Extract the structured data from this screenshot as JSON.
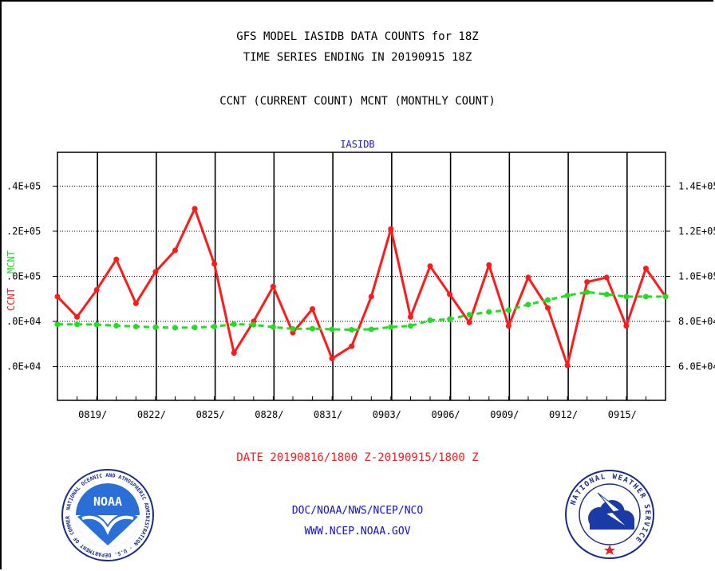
{
  "header": {
    "line1": "GFS MODEL IASIDB DATA COUNTS for 18Z",
    "line2": "TIME SERIES ENDING IN 20190915 18Z",
    "line3": "CCNT (CURRENT COUNT) MCNT (MONTHLY COUNT)"
  },
  "chart_data": {
    "type": "line",
    "title": "IASIDB",
    "xlabel": "DATE 20190816/1800 Z-20190915/1800 Z",
    "ylabel_left": "CCNT",
    "ylabel_right": "MCNT",
    "x_tick_labels": [
      "0819/",
      "0822/",
      "0825/",
      "0828/",
      "0831/",
      "0903/",
      "0906/",
      "0909/",
      "0912/",
      "0915/"
    ],
    "left_tick_labels": [
      ".4E+05",
      ".2E+05",
      ".0E+05",
      ".0E+04",
      ".0E+04"
    ],
    "right_tick_labels": [
      "1.4E+05",
      "1.2E+05",
      "1.0E+05",
      "8.0E+04",
      "6.0E+04"
    ],
    "right_ylim": [
      45000,
      155000
    ],
    "grid": true,
    "series": [
      {
        "name": "CCNT",
        "color": "#ff1a1a",
        "x": [
          "0816",
          "0817",
          "0818",
          "0819",
          "0820",
          "0821",
          "0822",
          "0823",
          "0824",
          "0825",
          "0826",
          "0827",
          "0828",
          "0829",
          "0830",
          "0831",
          "0901",
          "0902",
          "0903",
          "0904",
          "0905",
          "0906",
          "0907",
          "0908",
          "0909",
          "0910",
          "0911",
          "0912",
          "0913",
          "0914",
          "0915",
          "0916"
        ],
        "values": [
          91000,
          82000,
          94000,
          107500,
          88000,
          102000,
          111500,
          130000,
          105500,
          66000,
          80000,
          95500,
          75000,
          85500,
          63500,
          69000,
          91000,
          121000,
          82000,
          104500,
          92000,
          79500,
          105000,
          78000,
          99500,
          86000,
          60500,
          97500,
          99500,
          78000,
          103500,
          91000
        ]
      },
      {
        "name": "MCNT",
        "color": "#22dd22",
        "x": [
          "0816",
          "0817",
          "0818",
          "0819",
          "0820",
          "0821",
          "0822",
          "0823",
          "0824",
          "0825",
          "0826",
          "0827",
          "0828",
          "0829",
          "0830",
          "0831",
          "0901",
          "0902",
          "0903",
          "0904",
          "0905",
          "0906",
          "0907",
          "0908",
          "0909",
          "0910",
          "0911",
          "0912",
          "0913",
          "0914",
          "0915",
          "0916"
        ],
        "values": [
          78700,
          78700,
          78600,
          78100,
          77700,
          77400,
          77200,
          77300,
          77700,
          78800,
          78500,
          77500,
          76700,
          76800,
          76500,
          76300,
          76500,
          77500,
          78000,
          80500,
          81000,
          83000,
          84200,
          85000,
          87500,
          89500,
          91500,
          93000,
          92000,
          91000,
          91000,
          91000
        ]
      }
    ]
  },
  "footer": {
    "date_label": "DATE 20190816/1800 Z-20190915/1800 Z",
    "line1": "DOC/NOAA/NWS/NCEP/NCO",
    "line2": "WWW.NCEP.NOAA.GOV"
  },
  "logos": {
    "left_icon": "noaa-logo",
    "left_text": "NOAA",
    "left_ring_text": "NATIONAL OCEANIC AND ATMOSPHERIC ADMINISTRATION · U.S. DEPARTMENT OF COMMERCE",
    "right_icon": "nws-logo",
    "right_ring_text": "NATIONAL WEATHER SERVICE"
  }
}
